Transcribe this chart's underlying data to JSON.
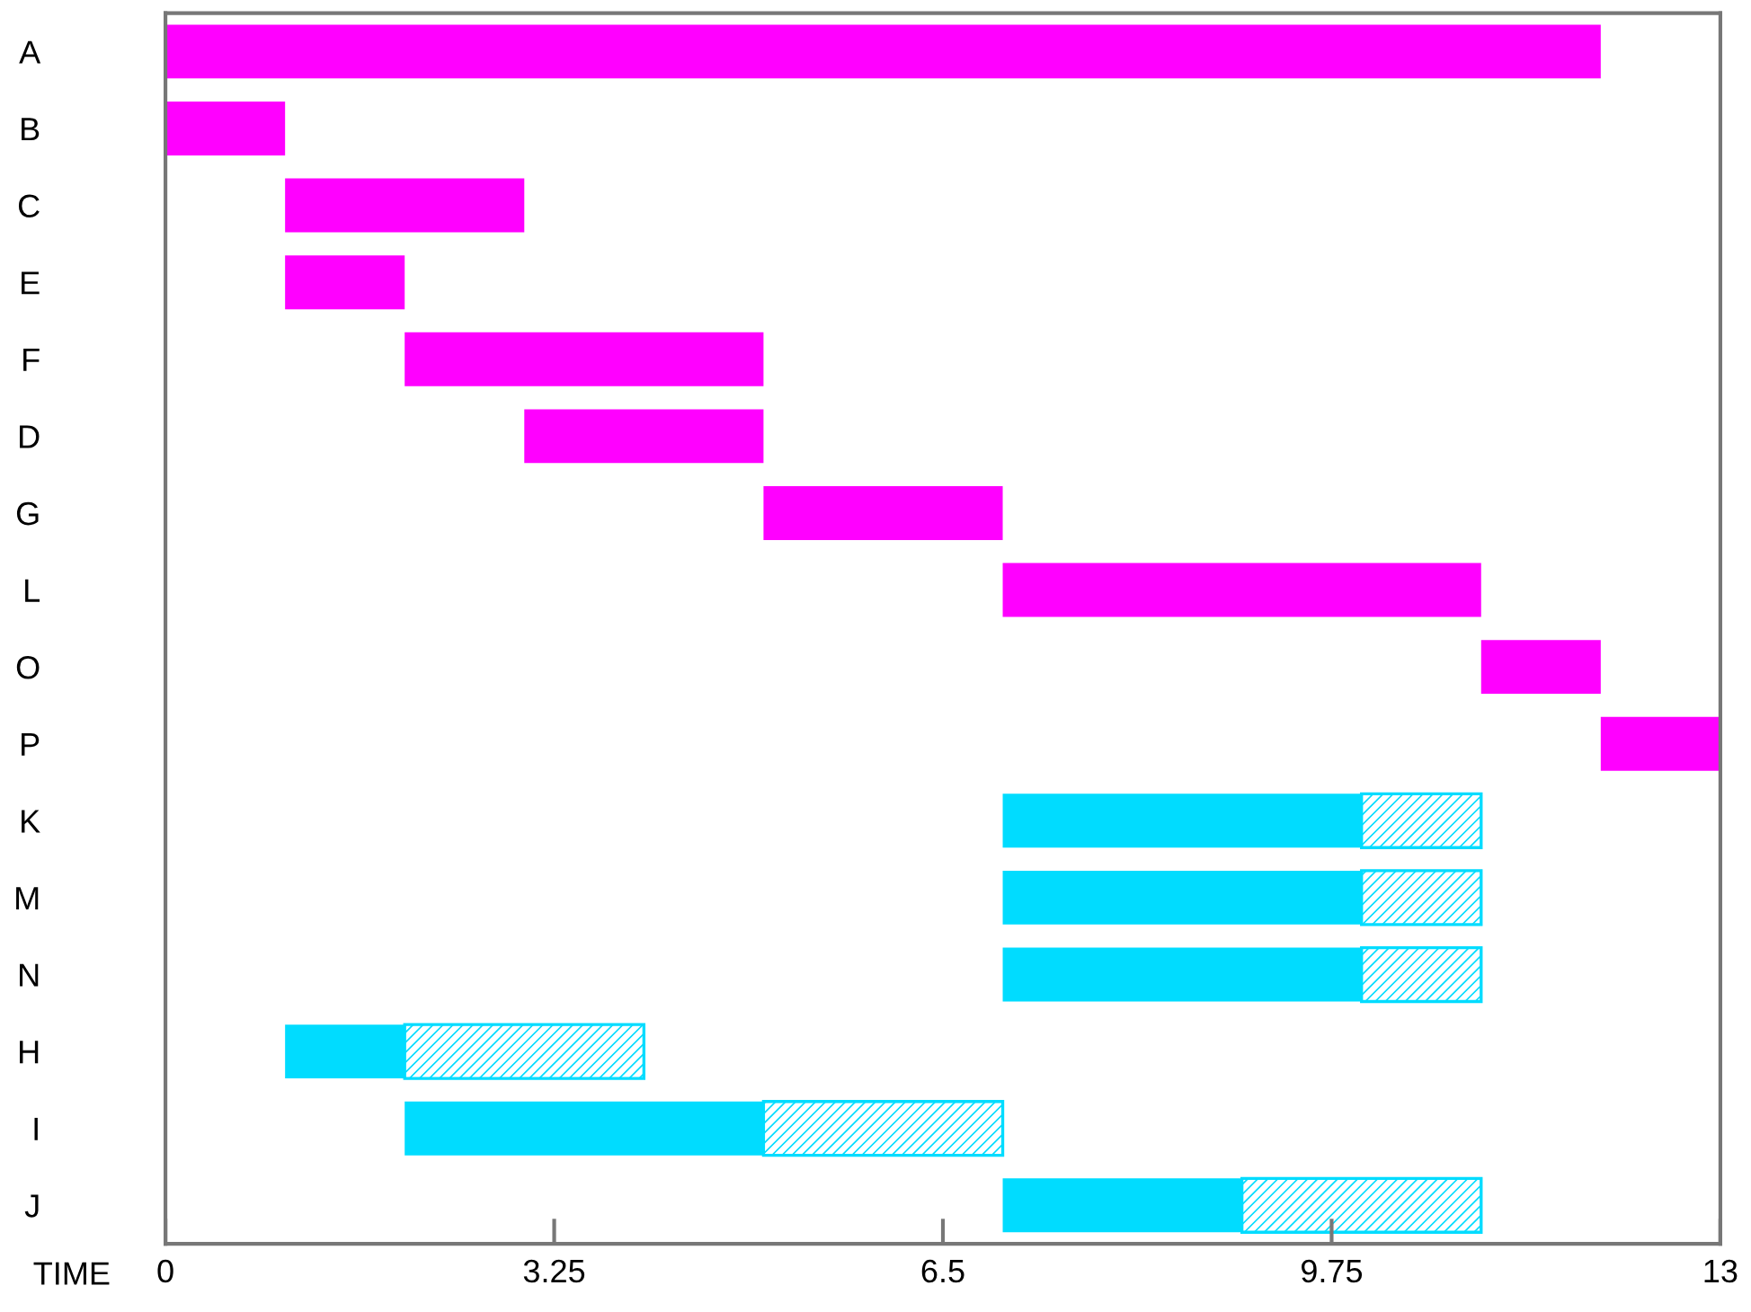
{
  "chart_data": {
    "type": "bar",
    "orientation": "horizontal",
    "xlabel": "TIME",
    "categories": [
      "A",
      "B",
      "C",
      "E",
      "F",
      "D",
      "G",
      "L",
      "O",
      "P",
      "K",
      "M",
      "N",
      "H",
      "I",
      "J"
    ],
    "series": [
      {
        "base": [
          0,
          0,
          1,
          1,
          2,
          3,
          5,
          7,
          11,
          12,
          7,
          7,
          7,
          1,
          2,
          7
        ],
        "values": [
          12,
          1,
          2,
          1,
          3,
          2,
          2,
          4,
          1,
          1,
          3,
          3,
          3,
          1,
          3,
          2
        ],
        "colors": [
          "#ff00ff",
          "#ff00ff",
          "#ff00ff",
          "#ff00ff",
          "#ff00ff",
          "#ff00ff",
          "#ff00ff",
          "#ff00ff",
          "#ff00ff",
          "#ff00ff",
          "#00dcff",
          "#00dcff",
          "#00dcff",
          "#00dcff",
          "#00dcff",
          "#00dcff"
        ]
      },
      {
        "base": [
          null,
          null,
          null,
          null,
          null,
          null,
          null,
          null,
          null,
          null,
          10,
          10,
          10,
          2,
          5,
          9
        ],
        "values": [
          null,
          null,
          null,
          null,
          null,
          null,
          null,
          null,
          null,
          null,
          1,
          1,
          1,
          2,
          2,
          2
        ],
        "color": "#00dcff"
      }
    ],
    "xlim": [
      0,
      13
    ],
    "xticks": [
      0,
      3.25,
      6.5,
      9.75,
      13
    ],
    "grid": false,
    "legend": false
  }
}
